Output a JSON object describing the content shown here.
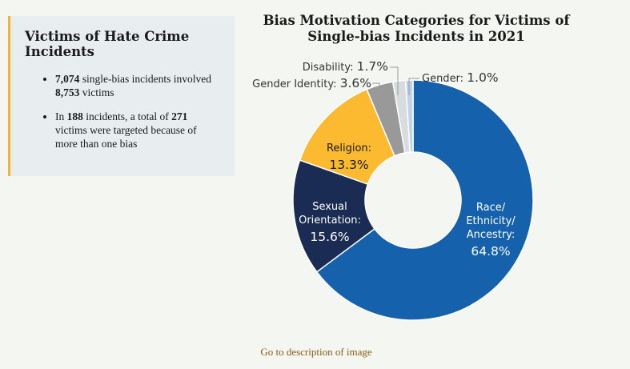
{
  "sidebar": {
    "title": "Victims of Hate Crime Incidents",
    "bullet1": {
      "num1": "7,074",
      "text1": " single-bias incidents involved ",
      "num2": "8,753",
      "text2": " victims"
    },
    "bullet2": {
      "text1": "In ",
      "num1": "188",
      "text2": " incidents, a total of ",
      "num2": "271",
      "text3": " victims were targeted because of more than one bias"
    },
    "accent_color": "#f2b52f"
  },
  "footer": {
    "link_text": "Go to description of image"
  },
  "chart_data": {
    "type": "pie",
    "donut": true,
    "title": "Bias Motivation Categories for Victims of Single-bias Incidents in 2021",
    "slices": [
      {
        "label": "Race/ Ethnicity/ Ancestry:",
        "value": 64.8,
        "display": "64.8%",
        "color": "#1561ac"
      },
      {
        "label": "Sexual Orientation:",
        "value": 15.6,
        "display": "15.6%",
        "color": "#1b2c54"
      },
      {
        "label": "Religion:",
        "value": 13.3,
        "display": "13.3%",
        "color": "#fbba30"
      },
      {
        "label": "Gender Identity:",
        "value": 3.6,
        "display": "3.6%",
        "color": "#999999"
      },
      {
        "label": "Disability:",
        "value": 1.7,
        "display": "1.7%",
        "color": "#d9dcdf"
      },
      {
        "label": "Gender:",
        "value": 1.0,
        "display": "1.0%",
        "color": "#bfd2e6"
      }
    ]
  }
}
